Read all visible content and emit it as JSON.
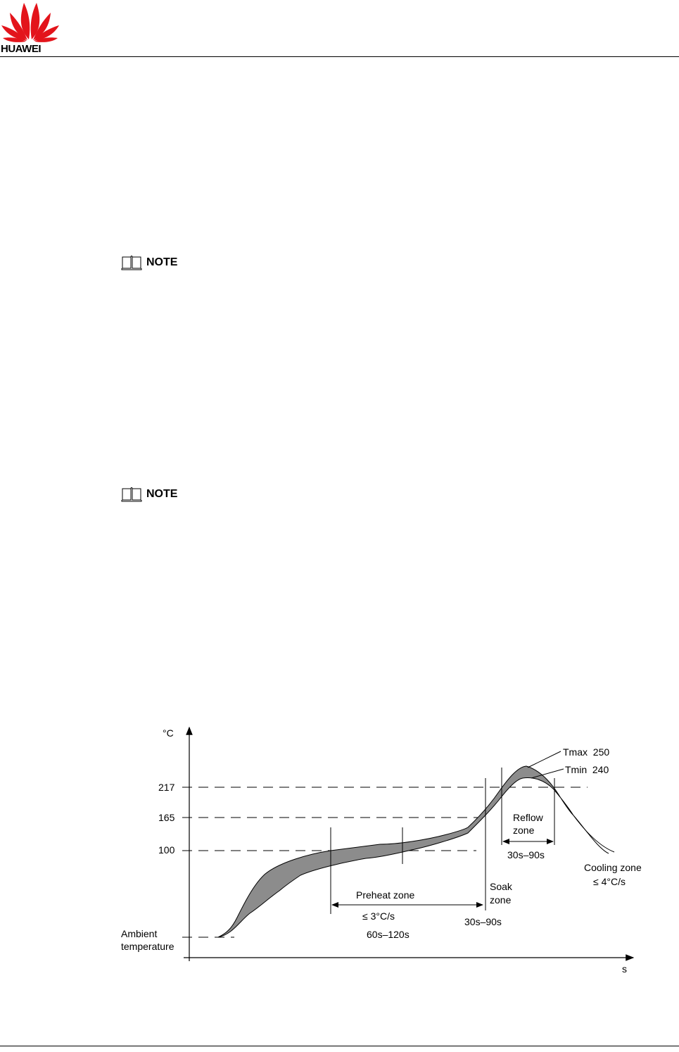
{
  "header": {
    "brand": "HUAWEI",
    "logo_icon": "huawei-petal-logo",
    "logo_color": "#e3141b"
  },
  "notes": [
    {
      "label": "NOTE",
      "icon": "book-icon"
    },
    {
      "label": "NOTE",
      "icon": "book-icon"
    }
  ],
  "chart_data": {
    "type": "line",
    "y_unit_label": "°C",
    "x_unit_label": "s",
    "y_ticks": [
      "217",
      "165",
      "100"
    ],
    "ambient_label_line1": "Ambient",
    "ambient_label_line2": "temperature",
    "annotations": {
      "tmax": "Tmax  250",
      "tmin": "Tmin  240",
      "preheat_zone": "Preheat zone",
      "preheat_rate": "≤ 3°C/s",
      "preheat_time": "60s–120s",
      "soak_zone_line1": "Soak",
      "soak_zone_line2": "zone",
      "soak_time": "30s–90s",
      "reflow_zone_line1": "Reflow",
      "reflow_zone_line2": "zone",
      "reflow_time": "30s–90s",
      "cooling_zone": "Cooling zone",
      "cooling_rate": "≤ 4°C/s"
    },
    "band_color": "#8c8c8c",
    "grid": false
  }
}
